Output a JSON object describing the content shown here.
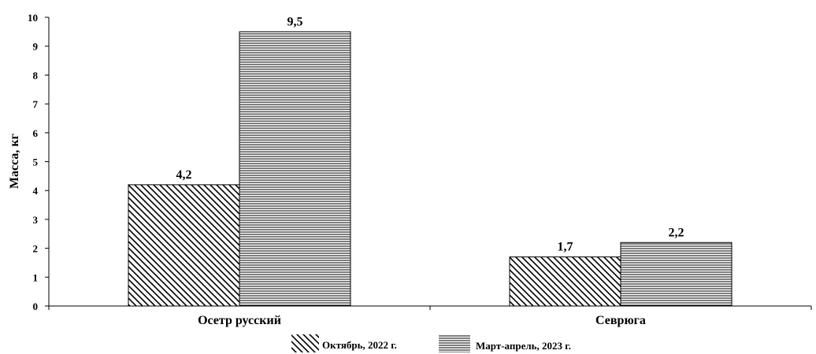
{
  "chart_data": {
    "type": "bar",
    "title": "",
    "xlabel": "",
    "ylabel": "Масса, кг",
    "ylim": [
      0,
      10
    ],
    "yticks": [
      0,
      1,
      2,
      3,
      4,
      5,
      6,
      7,
      8,
      9,
      10
    ],
    "grid": false,
    "legend_position": "bottom",
    "categories": [
      "Осетр русский",
      "Севрюга"
    ],
    "series": [
      {
        "name": "Октябрь, 2022 г.",
        "values": [
          4.2,
          1.7
        ],
        "value_labels": [
          "4,2",
          "1,7"
        ],
        "pattern": "diagonal-hatch"
      },
      {
        "name": "Март-апрель, 2023 г.",
        "values": [
          9.5,
          2.2
        ],
        "value_labels": [
          "9,5",
          "2,2"
        ],
        "pattern": "horizontal-hatch"
      }
    ]
  }
}
